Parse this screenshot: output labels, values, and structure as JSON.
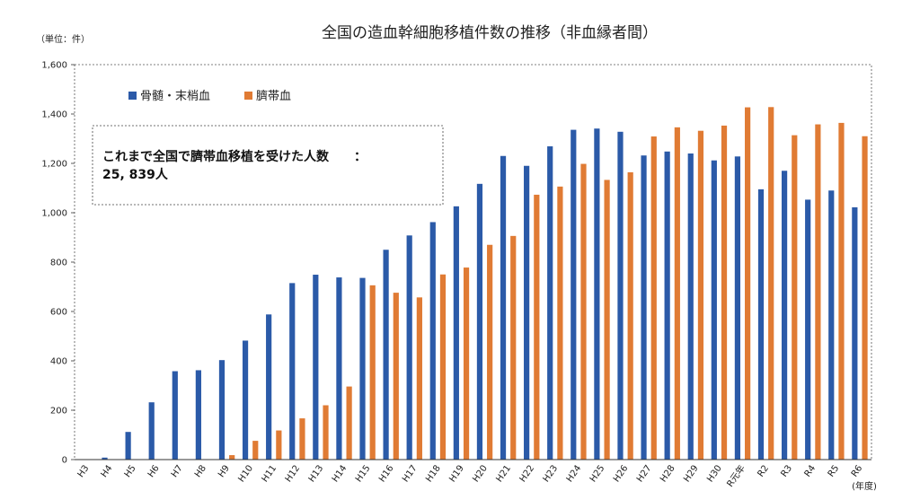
{
  "chart_data": {
    "type": "bar",
    "title": "全国の造血幹細胞移植件数の推移（非血縁者間）",
    "y_unit_label": "（単位：件）",
    "x_unit_label": "(年度)",
    "ylim": [
      0,
      1600
    ],
    "y_ticks": [
      "0",
      "200",
      "400",
      "600",
      "800",
      "1,000",
      "1,200",
      "1,400",
      "1,600"
    ],
    "y_tick_values": [
      0,
      200,
      400,
      600,
      800,
      1000,
      1200,
      1400,
      1600
    ],
    "grid": false,
    "legend_position": "top-left",
    "categories": [
      "H3",
      "H4",
      "H5",
      "H6",
      "H7",
      "H8",
      "H9",
      "H10",
      "H11",
      "H12",
      "H13",
      "H14",
      "H15",
      "H16",
      "H17",
      "H18",
      "H19",
      "H20",
      "H21",
      "H22",
      "H23",
      "H24",
      "H25",
      "H26",
      "H27",
      "H28",
      "H29",
      "H30",
      "R元年",
      "R2",
      "R3",
      "R4",
      "R5",
      "R6"
    ],
    "series": [
      {
        "name": "骨髄・末梢血",
        "color": "#2b5aa8",
        "values": [
          0,
          8,
          112,
          232,
          358,
          362,
          403,
          482,
          588,
          715,
          749,
          738,
          736,
          850,
          908,
          962,
          1026,
          1117,
          1230,
          1190,
          1269,
          1336,
          1341,
          1328,
          1232,
          1248,
          1240,
          1212,
          1228,
          1095,
          1170,
          1053,
          1090,
          1022
        ]
      },
      {
        "name": "臍帯血",
        "color": "#e07b34",
        "values": [
          0,
          0,
          0,
          0,
          0,
          0,
          18,
          76,
          118,
          167,
          220,
          296,
          706,
          676,
          657,
          750,
          778,
          870,
          906,
          1073,
          1106,
          1198,
          1133,
          1164,
          1309,
          1346,
          1332,
          1353,
          1427,
          1428,
          1314,
          1358,
          1364,
          1310
        ]
      }
    ],
    "annotation": {
      "line1": "これまで全国で臍帯血移植を受けた人数　　：",
      "line2": "25, 839人"
    }
  }
}
